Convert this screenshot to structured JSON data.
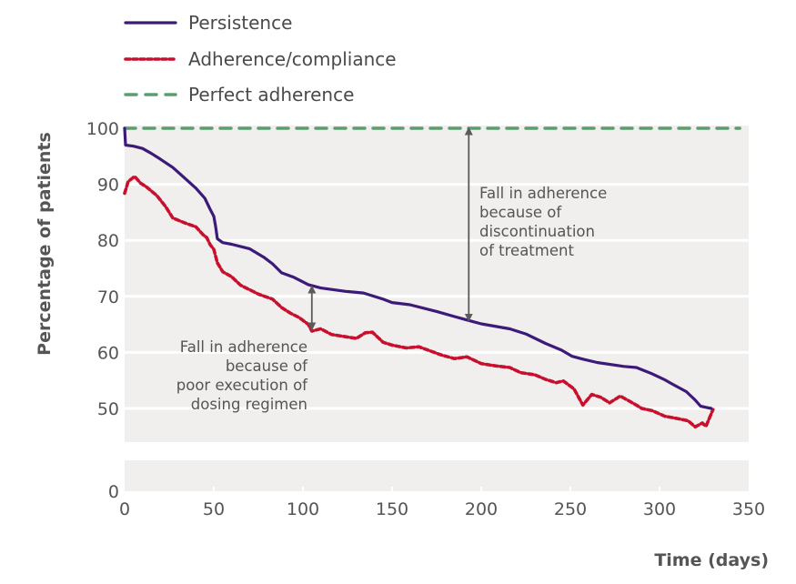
{
  "chart_data": {
    "type": "line",
    "title": "",
    "xlabel": "Time (days)",
    "ylabel": "Percentage of patients",
    "xlim": [
      0,
      350
    ],
    "ylim_upper_panel": [
      44,
      100
    ],
    "ylim_lower_panel": [
      0,
      5
    ],
    "axis_break": true,
    "x_ticks": [
      0,
      50,
      100,
      150,
      200,
      250,
      300,
      350
    ],
    "y_ticks": [
      0,
      50,
      60,
      70,
      80,
      90,
      100
    ],
    "grid": "horizontal",
    "legend_position": "top-left",
    "legend": [
      "Persistence",
      "Adherence/compliance",
      "Perfect adherence"
    ],
    "series": [
      {
        "name": "Persistence",
        "style": "solid",
        "color": "#3b1a78",
        "x": [
          0,
          0.5,
          5,
          10,
          15,
          20,
          27,
          33,
          40,
          45,
          48,
          50,
          51,
          52,
          55,
          60,
          70,
          78,
          83,
          88,
          95,
          103,
          110,
          124,
          134,
          145,
          150,
          160,
          175,
          185,
          193,
          200,
          216,
          225,
          236,
          245,
          251,
          257,
          265,
          280,
          287,
          295,
          303,
          308,
          315,
          320,
          323,
          326,
          329
        ],
        "y": [
          100,
          97,
          96.8,
          96.4,
          95.5,
          94.5,
          93,
          91.3,
          89.3,
          87.5,
          85.5,
          84.3,
          82.5,
          80.3,
          79.6,
          79.3,
          78.5,
          77,
          75.8,
          74.2,
          73.4,
          72.1,
          71.5,
          70.9,
          70.6,
          69.5,
          68.9,
          68.5,
          67.3,
          66.4,
          65.7,
          65.1,
          64.2,
          63.3,
          61.6,
          60.4,
          59.3,
          58.8,
          58.2,
          57.5,
          57.3,
          56.3,
          55.1,
          54.2,
          53,
          51.5,
          50.4,
          50.2,
          50
        ]
      },
      {
        "name": "Adherence/compliance",
        "style": "dotted",
        "color": "#c8102e",
        "x": [
          0,
          2,
          5.6,
          9,
          12,
          18,
          23,
          27,
          33,
          40,
          44,
          46,
          48,
          50,
          52,
          55,
          60,
          65,
          70,
          75,
          83,
          88,
          93,
          98,
          103,
          105,
          110,
          116,
          124,
          130,
          135,
          139,
          145,
          150,
          158,
          165,
          172,
          178,
          185,
          192,
          200,
          208,
          216,
          222,
          230,
          236,
          242,
          246,
          252,
          257,
          262,
          267,
          272,
          278,
          282,
          287,
          290,
          296,
          303,
          310,
          316,
          320,
          324,
          326,
          330
        ],
        "y": [
          88.4,
          90.5,
          91.4,
          90.2,
          89.6,
          88,
          86,
          84,
          83.2,
          82.4,
          81,
          80.5,
          79.2,
          78.4,
          76,
          74.4,
          73.5,
          72,
          71.2,
          70.4,
          69.5,
          68,
          67,
          66.2,
          65,
          63.8,
          64.2,
          63.2,
          62.8,
          62.5,
          63.5,
          63.6,
          61.8,
          61.3,
          60.8,
          61,
          60.2,
          59.5,
          58.9,
          59.2,
          58,
          57.6,
          57.3,
          56.4,
          56,
          55.2,
          54.6,
          54.9,
          53.5,
          50.6,
          52.5,
          52,
          51,
          52.2,
          51.5,
          50.6,
          50,
          49.6,
          48.6,
          48.2,
          47.8,
          46.7,
          47.4,
          46.8,
          49.8
        ]
      },
      {
        "name": "Perfect adherence",
        "style": "dashed",
        "color": "#5a9e6f",
        "x": [
          0,
          345
        ],
        "y": [
          100,
          100
        ]
      }
    ],
    "annotations": [
      {
        "name": "discontinuation",
        "lines": [
          "Fall in adherence",
          "because of",
          "discontinuation",
          "of treatment"
        ],
        "arrow": {
          "x": 193,
          "y_from": 100,
          "y_to": 65.7
        }
      },
      {
        "name": "poor-execution",
        "lines": [
          "Fall in adherence",
          "because of",
          "poor execution of",
          "dosing regimen"
        ],
        "arrow": {
          "x": 105,
          "y_from": 72.0,
          "y_to": 64.0
        }
      }
    ]
  },
  "colors": {
    "plot_background": "#f0efee",
    "gridline": "#ffffff",
    "arrow": "#5b5b5b",
    "text": "#555555"
  }
}
